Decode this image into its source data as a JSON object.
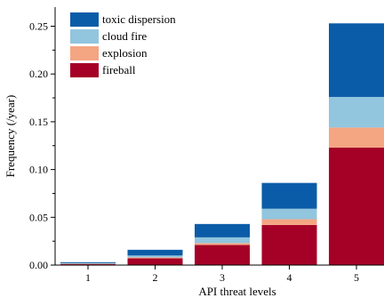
{
  "chart_data": {
    "type": "bar",
    "stacked": true,
    "xlabel": "API threat levels",
    "ylabel": "Frequency (/year)",
    "categories": [
      "1",
      "2",
      "3",
      "4",
      "5"
    ],
    "ylim": [
      0,
      0.27
    ],
    "yticks": [
      "0.00",
      "0.05",
      "0.10",
      "0.15",
      "0.20",
      "0.25"
    ],
    "grid": false,
    "legend_position": "top-left",
    "series": [
      {
        "name": "fireball",
        "color": "#a50026",
        "values": [
          0.001,
          0.007,
          0.021,
          0.042,
          0.123
        ]
      },
      {
        "name": "explosion",
        "color": "#f4a582",
        "values": [
          0.0005,
          0.001,
          0.002,
          0.006,
          0.021
        ]
      },
      {
        "name": "cloud fire",
        "color": "#92c5de",
        "values": [
          0.0005,
          0.002,
          0.006,
          0.011,
          0.032
        ]
      },
      {
        "name": "toxic dispersion",
        "color": "#0b5ca8",
        "values": [
          0.001,
          0.006,
          0.014,
          0.027,
          0.077
        ]
      }
    ],
    "legend_order": [
      "toxic dispersion",
      "cloud fire",
      "explosion",
      "fireball"
    ]
  }
}
